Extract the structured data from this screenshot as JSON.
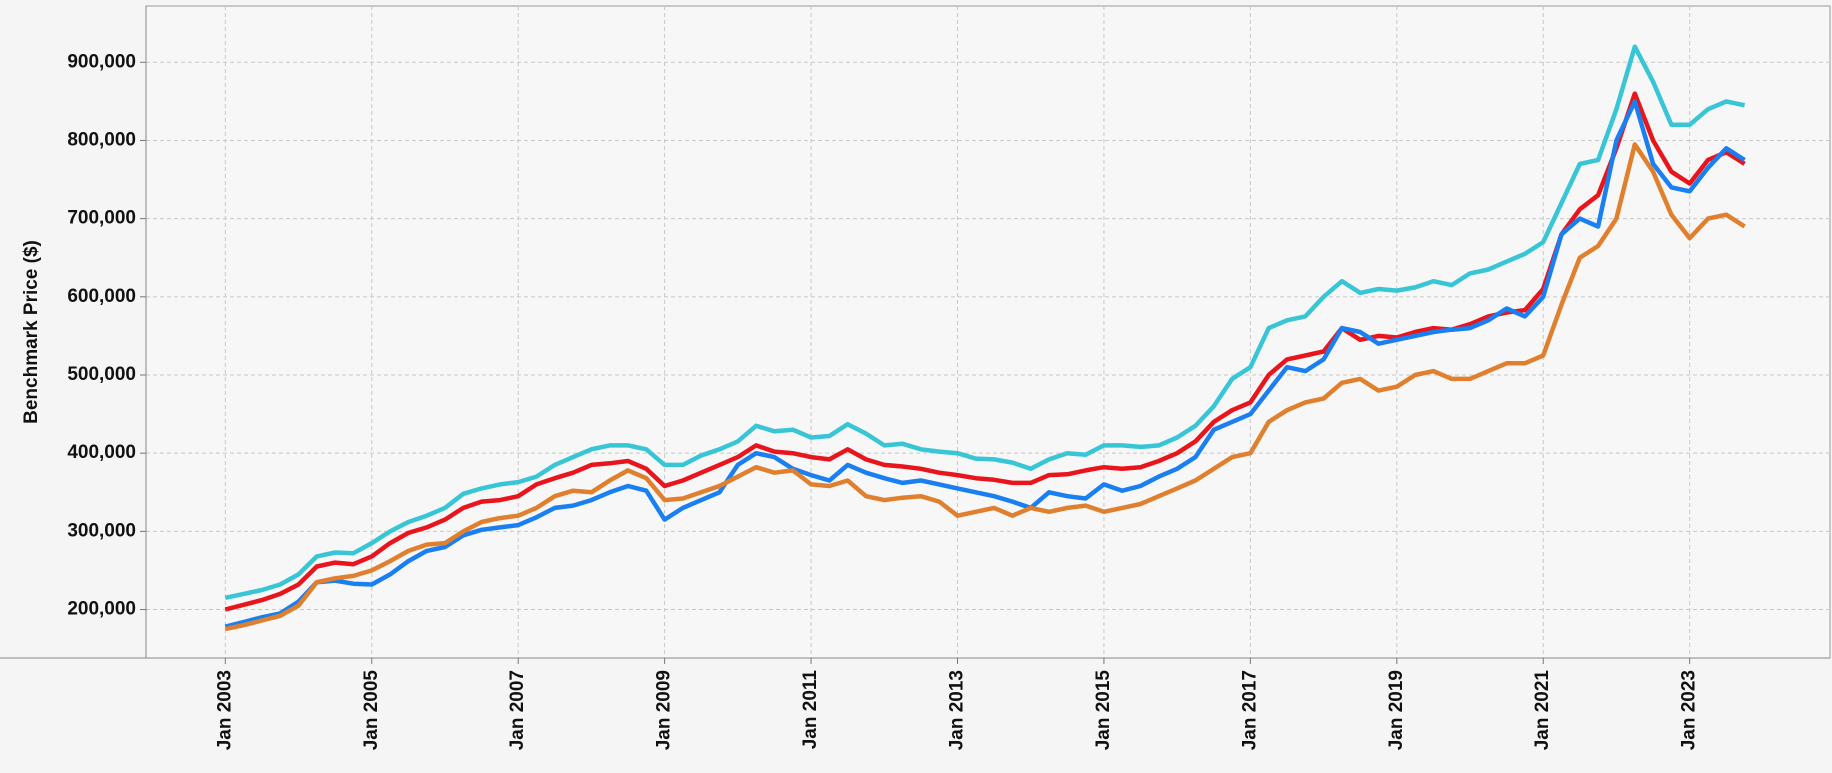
{
  "chart_data": {
    "type": "line",
    "y_label": "Benchmark Price ($)",
    "x": [
      "2003-01",
      "2003-04",
      "2003-07",
      "2003-10",
      "2004-01",
      "2004-04",
      "2004-07",
      "2004-10",
      "2005-01",
      "2005-04",
      "2005-07",
      "2005-10",
      "2006-01",
      "2006-04",
      "2006-07",
      "2006-10",
      "2007-01",
      "2007-04",
      "2007-07",
      "2007-10",
      "2008-01",
      "2008-04",
      "2008-07",
      "2008-10",
      "2009-01",
      "2009-04",
      "2009-07",
      "2009-10",
      "2010-01",
      "2010-04",
      "2010-07",
      "2010-10",
      "2011-01",
      "2011-04",
      "2011-07",
      "2011-10",
      "2012-01",
      "2012-04",
      "2012-07",
      "2012-10",
      "2013-01",
      "2013-04",
      "2013-07",
      "2013-10",
      "2014-01",
      "2014-04",
      "2014-07",
      "2014-10",
      "2015-01",
      "2015-04",
      "2015-07",
      "2015-10",
      "2016-01",
      "2016-04",
      "2016-07",
      "2016-10",
      "2017-01",
      "2017-04",
      "2017-07",
      "2017-10",
      "2018-01",
      "2018-04",
      "2018-07",
      "2018-10",
      "2019-01",
      "2019-04",
      "2019-07",
      "2019-10",
      "2020-01",
      "2020-04",
      "2020-07",
      "2020-10",
      "2021-01",
      "2021-04",
      "2021-07",
      "2021-10",
      "2022-01",
      "2022-04",
      "2022-07",
      "2022-10",
      "2023-01",
      "2023-04",
      "2023-07",
      "2023-10"
    ],
    "series": [
      {
        "color": "#38c5d6",
        "values": [
          215000,
          220000,
          225000,
          232000,
          245000,
          268000,
          273000,
          272000,
          285000,
          300000,
          312000,
          320000,
          330000,
          348000,
          355000,
          360000,
          363000,
          370000,
          385000,
          395000,
          405000,
          410000,
          410000,
          405000,
          385000,
          385000,
          397000,
          405000,
          415000,
          435000,
          428000,
          430000,
          420000,
          422000,
          437000,
          425000,
          410000,
          412000,
          405000,
          402000,
          400000,
          393000,
          392000,
          388000,
          380000,
          392000,
          400000,
          398000,
          410000,
          410000,
          408000,
          410000,
          420000,
          435000,
          460000,
          495000,
          510000,
          560000,
          570000,
          575000,
          600000,
          620000,
          605000,
          610000,
          608000,
          612000,
          620000,
          615000,
          630000,
          635000,
          645000,
          655000,
          670000,
          720000,
          770000,
          775000,
          840000,
          920000,
          875000,
          820000,
          820000,
          840000,
          850000,
          845000
        ]
      },
      {
        "color": "#e8151d",
        "values": [
          200000,
          206000,
          212000,
          220000,
          232000,
          255000,
          260000,
          258000,
          268000,
          285000,
          298000,
          305000,
          315000,
          330000,
          338000,
          340000,
          345000,
          360000,
          368000,
          375000,
          385000,
          387000,
          390000,
          380000,
          358000,
          365000,
          375000,
          385000,
          395000,
          410000,
          402000,
          400000,
          395000,
          392000,
          405000,
          392000,
          385000,
          383000,
          380000,
          375000,
          372000,
          368000,
          366000,
          362000,
          362000,
          372000,
          373000,
          378000,
          382000,
          380000,
          382000,
          390000,
          400000,
          415000,
          440000,
          455000,
          465000,
          500000,
          520000,
          525000,
          530000,
          560000,
          545000,
          550000,
          548000,
          555000,
          560000,
          558000,
          565000,
          575000,
          580000,
          583000,
          610000,
          680000,
          712000,
          730000,
          790000,
          860000,
          800000,
          760000,
          745000,
          775000,
          785000,
          770000
        ]
      },
      {
        "color": "#1a7ff0",
        "values": [
          178000,
          184000,
          190000,
          195000,
          210000,
          235000,
          237000,
          233000,
          232000,
          245000,
          262000,
          275000,
          280000,
          295000,
          302000,
          305000,
          308000,
          318000,
          330000,
          333000,
          340000,
          350000,
          358000,
          352000,
          315000,
          330000,
          340000,
          350000,
          385000,
          400000,
          395000,
          380000,
          372000,
          365000,
          385000,
          375000,
          368000,
          362000,
          365000,
          360000,
          355000,
          350000,
          345000,
          338000,
          330000,
          350000,
          345000,
          342000,
          360000,
          352000,
          358000,
          370000,
          380000,
          395000,
          430000,
          440000,
          450000,
          480000,
          510000,
          505000,
          520000,
          560000,
          555000,
          540000,
          545000,
          550000,
          555000,
          558000,
          560000,
          570000,
          585000,
          575000,
          600000,
          680000,
          700000,
          690000,
          800000,
          850000,
          770000,
          740000,
          735000,
          765000,
          790000,
          775000
        ]
      },
      {
        "color": "#e0802f",
        "values": [
          175000,
          180000,
          186000,
          192000,
          205000,
          235000,
          240000,
          243000,
          250000,
          262000,
          275000,
          283000,
          285000,
          300000,
          312000,
          317000,
          320000,
          330000,
          345000,
          352000,
          350000,
          365000,
          378000,
          368000,
          340000,
          342000,
          350000,
          358000,
          370000,
          382000,
          375000,
          378000,
          360000,
          358000,
          365000,
          345000,
          340000,
          343000,
          345000,
          338000,
          320000,
          325000,
          330000,
          320000,
          330000,
          325000,
          330000,
          333000,
          325000,
          330000,
          335000,
          345000,
          355000,
          365000,
          380000,
          395000,
          400000,
          440000,
          455000,
          465000,
          470000,
          490000,
          495000,
          480000,
          485000,
          500000,
          505000,
          495000,
          495000,
          505000,
          515000,
          515000,
          525000,
          590000,
          650000,
          665000,
          700000,
          795000,
          760000,
          705000,
          675000,
          700000,
          705000,
          690000
        ]
      }
    ],
    "xlim": [
      "2001-12",
      "2024-12"
    ],
    "xticks": [
      {
        "value": "2003-01",
        "label": "Jan 2003"
      },
      {
        "value": "2005-01",
        "label": "Jan 2005"
      },
      {
        "value": "2007-01",
        "label": "Jan 2007"
      },
      {
        "value": "2009-01",
        "label": "Jan 2009"
      },
      {
        "value": "2011-01",
        "label": "Jan 2011"
      },
      {
        "value": "2013-01",
        "label": "Jan 2013"
      },
      {
        "value": "2015-01",
        "label": "Jan 2015"
      },
      {
        "value": "2017-01",
        "label": "Jan 2017"
      },
      {
        "value": "2019-01",
        "label": "Jan 2019"
      },
      {
        "value": "2021-01",
        "label": "Jan 2021"
      },
      {
        "value": "2023-01",
        "label": "Jan 2023"
      }
    ],
    "ylim": [
      138000,
      972000
    ],
    "yticks": [
      {
        "value": 200000,
        "label": "200,000"
      },
      {
        "value": 300000,
        "label": "300,000"
      },
      {
        "value": 400000,
        "label": "400,000"
      },
      {
        "value": 500000,
        "label": "500,000"
      },
      {
        "value": 600000,
        "label": "600,000"
      },
      {
        "value": 700000,
        "label": "700,000"
      },
      {
        "value": 800000,
        "label": "800,000"
      },
      {
        "value": 900000,
        "label": "900,000"
      }
    ],
    "grid": true
  }
}
